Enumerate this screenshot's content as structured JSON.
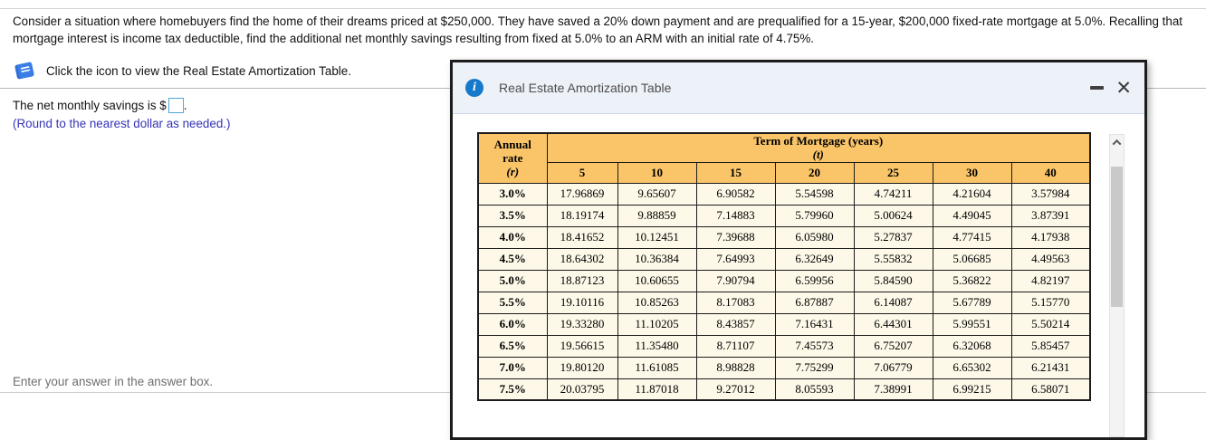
{
  "question": {
    "text": "Consider a situation where homebuyers find the home of their dreams priced at $250,000. They have saved a 20% down payment and are prequalified for a 15-year, $200,000 fixed-rate mortgage at 5.0%. Recalling that mortgage interest is income tax deductible, find the additional net monthly savings resulting from fixed at 5.0% to an ARM with an initial rate of 4.75%."
  },
  "icon_row": {
    "label": "Click the icon to view the Real Estate Amortization Table.",
    "icon": "book-icon"
  },
  "answer": {
    "prefix": "The net monthly savings is $",
    "suffix": ".",
    "value": "",
    "note": "(Round to the nearest dollar as needed.)"
  },
  "footer": {
    "hint": "Enter your answer in the answer box."
  },
  "dialog": {
    "title": "Real Estate Amortization Table",
    "info_icon_glyph": "i",
    "close_glyph": "✕"
  },
  "table": {
    "corner": [
      "Annual",
      "rate",
      "(r)"
    ],
    "span_header_line1": "Term of Mortgage (years)",
    "span_header_line2": "(t)",
    "term_columns": [
      "5",
      "10",
      "15",
      "20",
      "25",
      "30",
      "40"
    ],
    "rows": [
      {
        "rate": "3.0%",
        "values": [
          "17.96869",
          "9.65607",
          "6.90582",
          "5.54598",
          "4.74211",
          "4.21604",
          "3.57984"
        ]
      },
      {
        "rate": "3.5%",
        "values": [
          "18.19174",
          "9.88859",
          "7.14883",
          "5.79960",
          "5.00624",
          "4.49045",
          "3.87391"
        ]
      },
      {
        "rate": "4.0%",
        "values": [
          "18.41652",
          "10.12451",
          "7.39688",
          "6.05980",
          "5.27837",
          "4.77415",
          "4.17938"
        ]
      },
      {
        "rate": "4.5%",
        "values": [
          "18.64302",
          "10.36384",
          "7.64993",
          "6.32649",
          "5.55832",
          "5.06685",
          "4.49563"
        ]
      },
      {
        "rate": "5.0%",
        "values": [
          "18.87123",
          "10.60655",
          "7.90794",
          "6.59956",
          "5.84590",
          "5.36822",
          "4.82197"
        ]
      },
      {
        "rate": "5.5%",
        "values": [
          "19.10116",
          "10.85263",
          "8.17083",
          "6.87887",
          "6.14087",
          "5.67789",
          "5.15770"
        ]
      },
      {
        "rate": "6.0%",
        "values": [
          "19.33280",
          "11.10205",
          "8.43857",
          "7.16431",
          "6.44301",
          "5.99551",
          "5.50214"
        ]
      },
      {
        "rate": "6.5%",
        "values": [
          "19.56615",
          "11.35480",
          "8.71107",
          "7.45573",
          "6.75207",
          "6.32068",
          "5.85457"
        ]
      },
      {
        "rate": "7.0%",
        "values": [
          "19.80120",
          "11.61085",
          "8.98828",
          "7.75299",
          "7.06779",
          "6.65302",
          "6.21431"
        ]
      },
      {
        "rate": "7.5%",
        "values": [
          "20.03795",
          "11.87018",
          "9.27012",
          "8.05593",
          "7.38991",
          "6.99215",
          "6.58071"
        ]
      }
    ]
  },
  "colors": {
    "accent_blue": "#1779c9",
    "table_header_orange": "#fac568",
    "table_body_cream": "#fdf8e8",
    "note_blue": "#3434b8",
    "input_border_blue": "#4fa7d6"
  }
}
